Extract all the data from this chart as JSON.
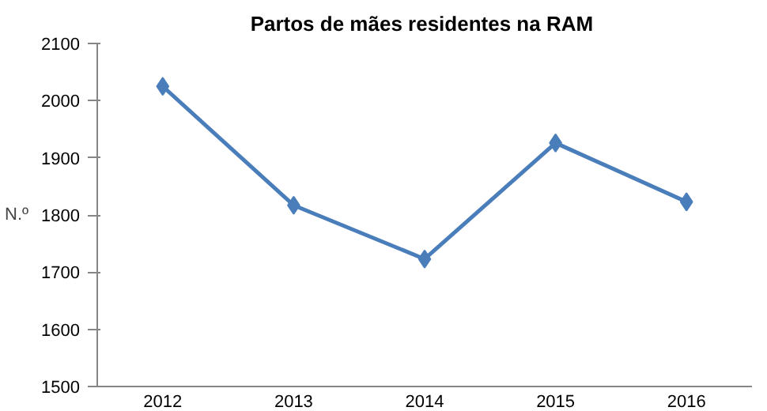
{
  "chart_data": {
    "type": "line",
    "title": "Partos  de mães residentes na RAM",
    "ylabel": "N.º",
    "categories": [
      "2012",
      "2013",
      "2014",
      "2015",
      "2016"
    ],
    "series": [
      {
        "color": "#4a7ebb",
        "values": [
          2025,
          1817,
          1723,
          1926,
          1823
        ]
      }
    ],
    "ylim": [
      1500,
      2100
    ],
    "yticks": [
      1500,
      1600,
      1700,
      1800,
      1900,
      2000,
      2100
    ],
    "grid": false,
    "marker": "diamond",
    "line_style": "solid"
  }
}
